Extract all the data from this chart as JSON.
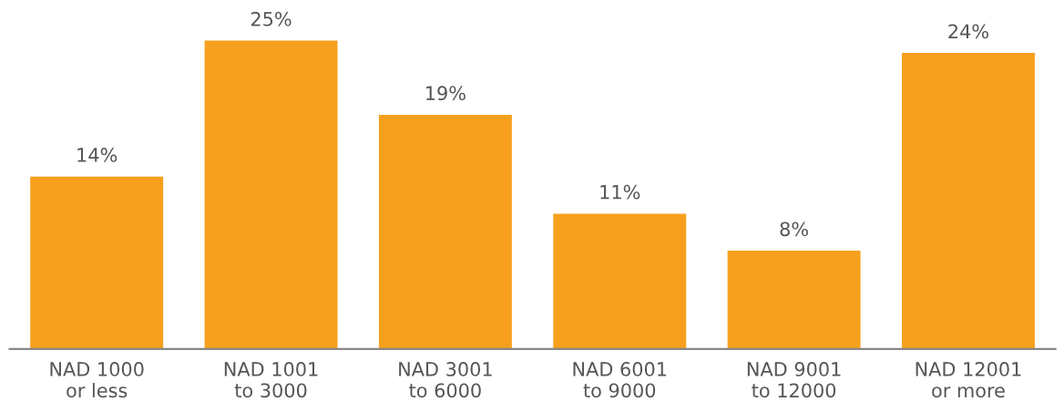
{
  "chart_data": {
    "type": "bar",
    "categories": [
      "NAD 1000\nor less",
      "NAD 1001\nto 3000",
      "NAD 3001\nto 6000",
      "NAD 6001\nto 9000",
      "NAD 9001\nto 12000",
      "NAD 12001\nor more"
    ],
    "values": [
      14,
      25,
      19,
      11,
      8,
      24
    ],
    "value_labels": [
      "14%",
      "25%",
      "19%",
      "11%",
      "8%",
      "24%"
    ],
    "color": "#f7a01d",
    "tick_labels": "x",
    "grid": false
  }
}
